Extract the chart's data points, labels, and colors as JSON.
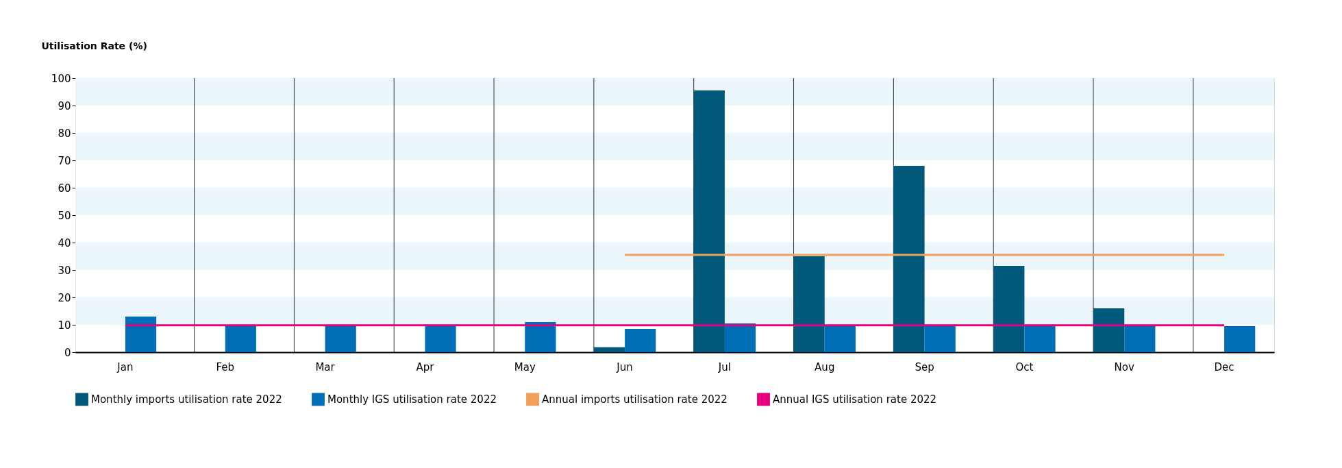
{
  "chart_data": {
    "type": "bar",
    "ylabel": "Utilisation Rate (%)",
    "categories": [
      "Jan",
      "Feb",
      "Mar",
      "Apr",
      "May",
      "Jun",
      "Jul",
      "Aug",
      "Sep",
      "Oct",
      "Nov",
      "Dec"
    ],
    "series": [
      {
        "name": "Monthly imports utilisation rate 2022",
        "color": "#00587a",
        "values": [
          null,
          null,
          null,
          null,
          null,
          1.8,
          95.5,
          35,
          68,
          31.5,
          16,
          null
        ]
      },
      {
        "name": "Monthly IGS utilisation rate 2022",
        "color": "#006eb7",
        "values": [
          13,
          9.5,
          10,
          9.5,
          11,
          8.5,
          10.5,
          9.5,
          9.5,
          9.7,
          9.5,
          9.5
        ]
      },
      {
        "name": "Annual imports utilisation rate 2022",
        "type": "line",
        "color": "#f5a05a",
        "values": [
          null,
          null,
          null,
          null,
          null,
          35.5,
          35.5,
          35.5,
          35.5,
          35.5,
          35.5,
          35.5
        ]
      },
      {
        "name": "Annual IGS utilisation rate 2022",
        "type": "line",
        "color": "#e6007e",
        "values": [
          9.8,
          9.8,
          9.8,
          9.8,
          9.8,
          9.8,
          9.8,
          9.8,
          9.8,
          9.8,
          9.8,
          9.8
        ]
      }
    ],
    "ylim": [
      0,
      100
    ],
    "yticks": [
      0,
      10,
      20,
      30,
      40,
      50,
      60,
      70,
      80,
      90,
      100
    ],
    "grid": true,
    "legend": "bottom left"
  }
}
